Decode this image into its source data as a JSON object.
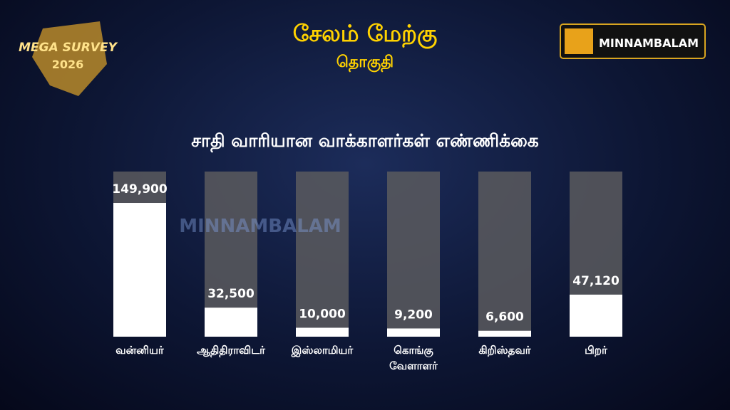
{
  "header": {
    "logo_line1": "MEGA SURVEY",
    "logo_line2": "2026",
    "title": "சேலம் மேற்கு",
    "subtitle": "தொகுதி",
    "brand": "MINNAMBALAM",
    "watermark": "MINNAMBALAM"
  },
  "chart_data": {
    "type": "bar",
    "title": "சாதி வாரியான வாக்காளர்கள்  எண்ணிக்கை",
    "categories": [
      "வன்னியர்",
      "ஆதிதிராவிடர்",
      "இஸ்லாமியர்",
      "கொங்கு\nவேளாளர்",
      "கிறிஸ்தவர்",
      "பிறர்"
    ],
    "values": [
      149900,
      32500,
      10000,
      9200,
      6600,
      47120
    ],
    "value_labels": [
      "149,900",
      "32,500",
      "10,000",
      "9,200",
      "6,600",
      "47,120"
    ],
    "color": "#ffffff",
    "track_color": "#5a5a5e",
    "ylim": [
      0,
      185000
    ]
  }
}
